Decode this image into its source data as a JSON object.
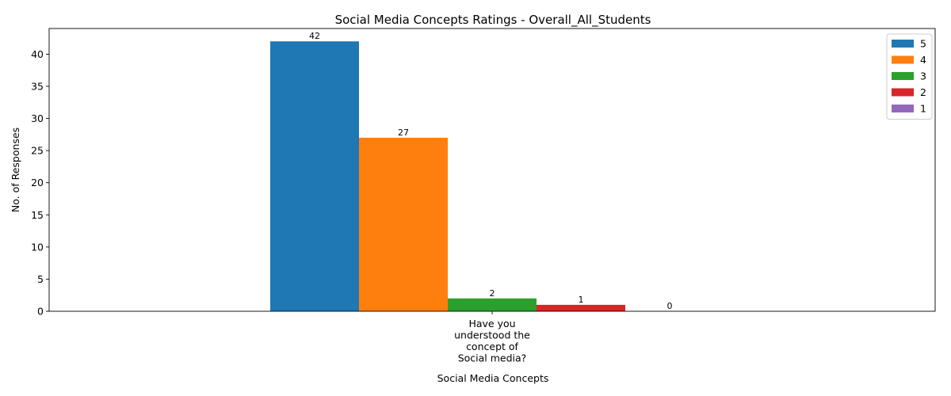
{
  "chart_data": {
    "type": "bar",
    "title": "Social Media Concepts Ratings - Overall_All_Students",
    "xlabel": "Social Media Concepts",
    "ylabel": "No. of Responses",
    "categories": [
      "Have you understood the concept of Social media?"
    ],
    "category_label_lines": [
      [
        "Have you",
        "understood the",
        "concept of",
        "Social media?"
      ]
    ],
    "ylim": [
      0,
      44
    ],
    "yticks": [
      0,
      5,
      10,
      15,
      20,
      25,
      30,
      35,
      40
    ],
    "grid": false,
    "legend_position": "top-right",
    "series": [
      {
        "name": "5",
        "color": "#1f77b4",
        "values": [
          42
        ]
      },
      {
        "name": "4",
        "color": "#ff7f0e",
        "values": [
          27
        ]
      },
      {
        "name": "3",
        "color": "#2ca02c",
        "values": [
          2
        ]
      },
      {
        "name": "2",
        "color": "#d62728",
        "values": [
          1
        ]
      },
      {
        "name": "1",
        "color": "#9467bd",
        "values": [
          0
        ]
      }
    ]
  }
}
